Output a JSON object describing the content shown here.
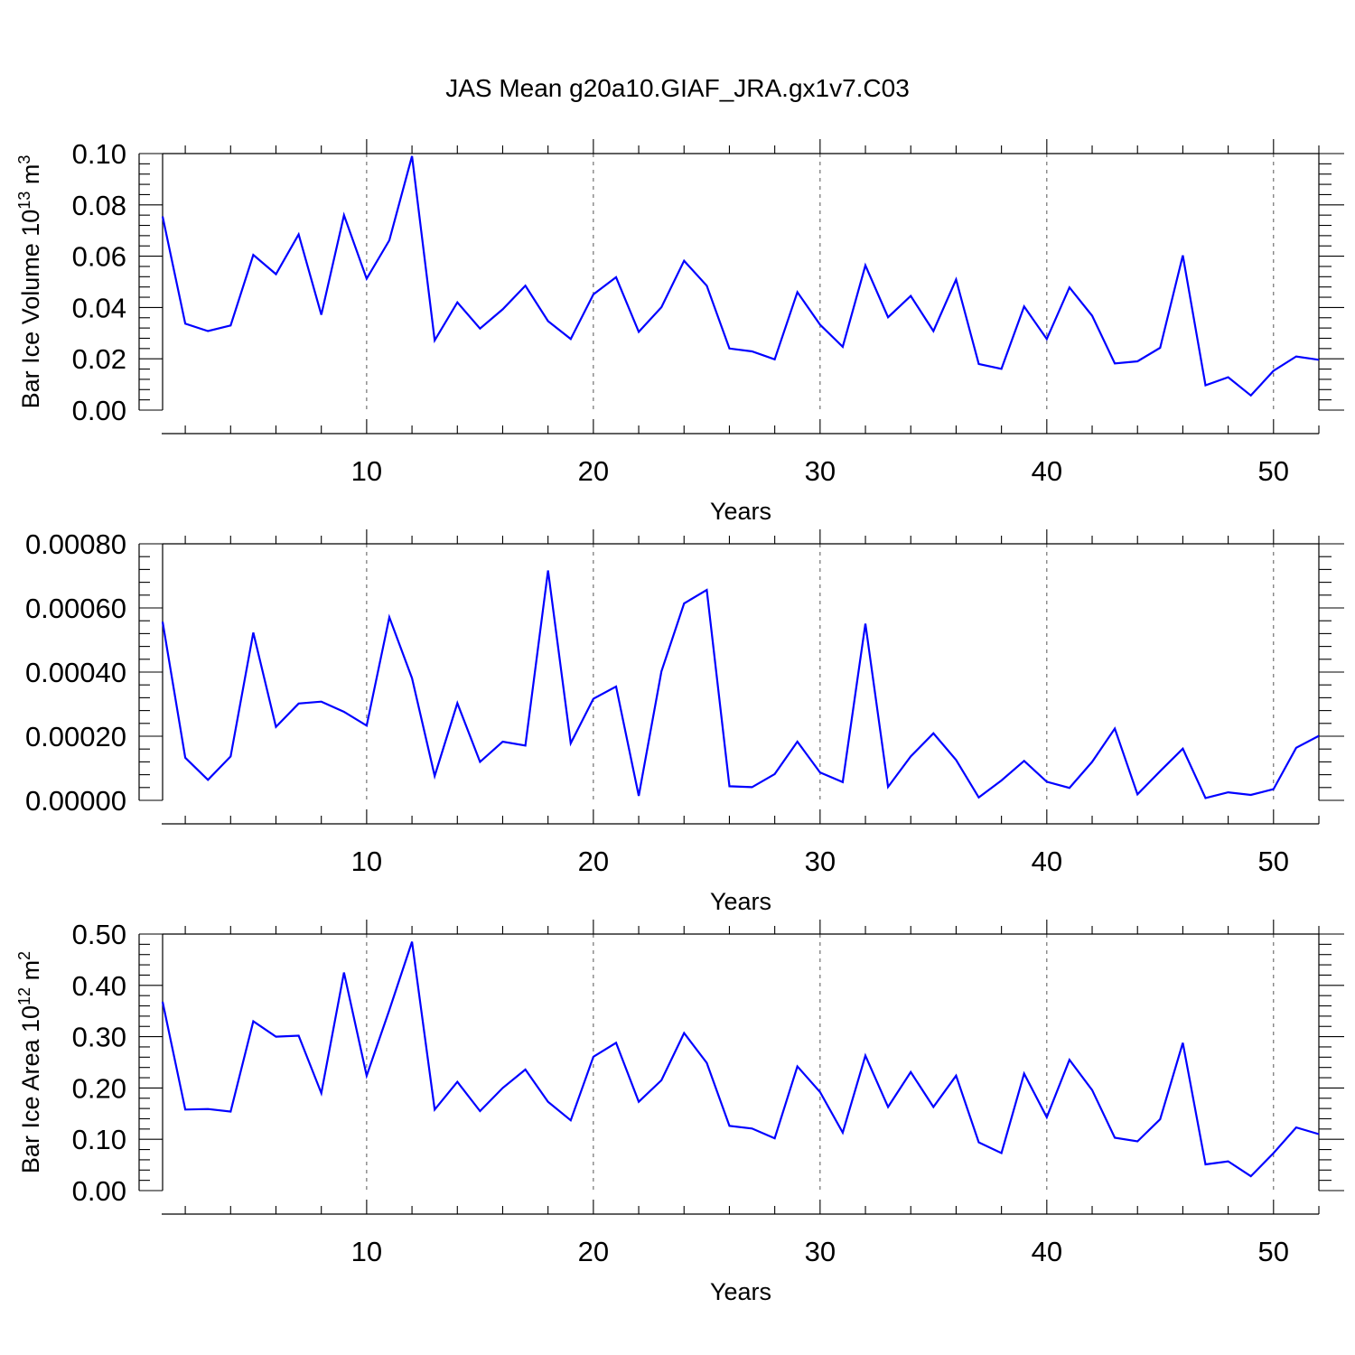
{
  "title": "JAS Mean g20a10.GIAF_JRA.gx1v7.C03",
  "colors": {
    "line": "#0000ff",
    "axes": "#000000",
    "grid": "#555555"
  },
  "chart_data": [
    {
      "type": "line",
      "xlabel": "Years",
      "ylabel": "Bar Ice Volume 10",
      "ylabel_sup": "13",
      "ylabel_unit": " m",
      "ylabel_unit_sup": "3",
      "xlim": [
        1,
        52
      ],
      "ylim": [
        0,
        0.1
      ],
      "grid": "vertical dashed at major x ticks",
      "x_ticks": [
        10,
        20,
        30,
        40,
        50
      ],
      "x_tick_labels": [
        "10",
        "20",
        "30",
        "40",
        "50"
      ],
      "y_ticks": [
        0,
        0.02,
        0.04,
        0.06,
        0.08,
        0.1
      ],
      "y_tick_labels": [
        "0.00",
        "0.02",
        "0.04",
        "0.06",
        "0.08",
        "0.10"
      ],
      "series": [
        {
          "x": [
            1,
            2,
            3,
            4,
            5,
            6,
            7,
            8,
            9,
            10,
            11,
            12,
            13,
            14,
            15,
            16,
            17,
            18,
            19,
            20,
            21,
            22,
            23,
            24,
            25,
            26,
            27,
            28,
            29,
            30,
            31,
            32,
            33,
            34,
            35,
            36,
            37,
            38,
            39,
            40,
            41,
            42,
            43,
            44,
            45,
            46,
            47,
            48,
            49,
            50,
            51,
            52
          ],
          "values": [
            0.0755,
            0.0337,
            0.0308,
            0.033,
            0.0605,
            0.053,
            0.0685,
            0.0372,
            0.076,
            0.0512,
            0.0662,
            0.099,
            0.0272,
            0.042,
            0.0318,
            0.0393,
            0.0485,
            0.0347,
            0.0277,
            0.0451,
            0.0518,
            0.0305,
            0.0401,
            0.0582,
            0.0485,
            0.024,
            0.0229,
            0.0198,
            0.046,
            0.0333,
            0.0247,
            0.0564,
            0.0362,
            0.0445,
            0.0308,
            0.0509,
            0.018,
            0.0161,
            0.0404,
            0.0277,
            0.0478,
            0.0368,
            0.0182,
            0.019,
            0.0243,
            0.0603,
            0.0097,
            0.0128,
            0.0057,
            0.0153,
            0.0209,
            0.0196
          ]
        }
      ]
    },
    {
      "type": "line",
      "xlabel": "Years",
      "xlim": [
        1,
        52
      ],
      "ylim": [
        0,
        0.0008
      ],
      "grid": "vertical dashed at major x ticks",
      "x_ticks": [
        10,
        20,
        30,
        40,
        50
      ],
      "x_tick_labels": [
        "10",
        "20",
        "30",
        "40",
        "50"
      ],
      "y_ticks": [
        0,
        0.0002,
        0.0004,
        0.0006,
        0.0008
      ],
      "y_tick_labels": [
        "0.00000",
        "0.00020",
        "0.00040",
        "0.00060",
        "0.00080"
      ],
      "series": [
        {
          "x": [
            1,
            2,
            3,
            4,
            5,
            6,
            7,
            8,
            9,
            10,
            11,
            12,
            13,
            14,
            15,
            16,
            17,
            18,
            19,
            20,
            21,
            22,
            23,
            24,
            25,
            26,
            27,
            28,
            29,
            30,
            31,
            32,
            33,
            34,
            35,
            36,
            37,
            38,
            39,
            40,
            41,
            42,
            43,
            44,
            45,
            46,
            47,
            48,
            49,
            50,
            51,
            52
          ],
          "values": [
            0.000557,
            0.000133,
            6.4e-05,
            0.000137,
            0.000523,
            0.000229,
            0.000302,
            0.000308,
            0.000276,
            0.000233,
            0.000571,
            0.000381,
            7.6e-05,
            0.000303,
            0.00012,
            0.000183,
            0.000171,
            0.000717,
            0.000178,
            0.000317,
            0.000355,
            1.4e-05,
            0.000402,
            0.000614,
            0.000656,
            4.4e-05,
            4.1e-05,
            8.2e-05,
            0.000183,
            8.7e-05,
            5.7e-05,
            0.000551,
            4.2e-05,
            0.000137,
            0.000209,
            0.000126,
            9e-06,
            6.2e-05,
            0.000123,
            5.8e-05,
            3.9e-05,
            0.00012,
            0.000224,
            1.9e-05,
            9.1e-05,
            0.000161,
            7e-06,
            2.5e-05,
            1.7e-05,
            3.5e-05,
            0.000164,
            0.000201
          ]
        }
      ]
    },
    {
      "type": "line",
      "xlabel": "Years",
      "ylabel": "Bar Ice Area 10",
      "ylabel_sup": "12",
      "ylabel_unit": " m",
      "ylabel_unit_sup": "2",
      "xlim": [
        1,
        52
      ],
      "ylim": [
        0,
        0.5
      ],
      "grid": "vertical dashed at major x ticks",
      "x_ticks": [
        10,
        20,
        30,
        40,
        50
      ],
      "x_tick_labels": [
        "10",
        "20",
        "30",
        "40",
        "50"
      ],
      "y_ticks": [
        0,
        0.1,
        0.2,
        0.3,
        0.4,
        0.5
      ],
      "y_tick_labels": [
        "0.00",
        "0.10",
        "0.20",
        "0.30",
        "0.40",
        "0.50"
      ],
      "series": [
        {
          "x": [
            1,
            2,
            3,
            4,
            5,
            6,
            7,
            8,
            9,
            10,
            11,
            12,
            13,
            14,
            15,
            16,
            17,
            18,
            19,
            20,
            21,
            22,
            23,
            24,
            25,
            26,
            27,
            28,
            29,
            30,
            31,
            32,
            33,
            34,
            35,
            36,
            37,
            38,
            39,
            40,
            41,
            42,
            43,
            44,
            45,
            46,
            47,
            48,
            49,
            50,
            51,
            52
          ],
          "values": [
            0.368,
            0.158,
            0.159,
            0.154,
            0.33,
            0.3,
            0.302,
            0.19,
            0.425,
            0.224,
            0.352,
            0.485,
            0.158,
            0.212,
            0.155,
            0.2,
            0.236,
            0.173,
            0.137,
            0.261,
            0.288,
            0.173,
            0.215,
            0.307,
            0.249,
            0.126,
            0.121,
            0.102,
            0.242,
            0.192,
            0.113,
            0.263,
            0.163,
            0.231,
            0.163,
            0.224,
            0.094,
            0.073,
            0.228,
            0.143,
            0.255,
            0.196,
            0.103,
            0.096,
            0.139,
            0.288,
            0.051,
            0.057,
            0.028,
            0.073,
            0.123,
            0.11
          ]
        }
      ]
    }
  ]
}
